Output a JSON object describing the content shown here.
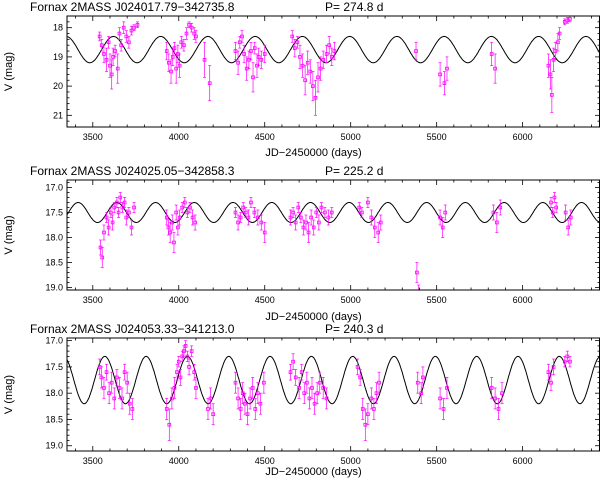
{
  "chart_data": [
    {
      "type": "scatter",
      "title": "Fornax 2MASS J024017.79−342735.8",
      "period_label": "P= 274.8 d",
      "xlabel": "JD−2450000 (days)",
      "ylabel": "V (mag)",
      "xlim": [
        3350,
        6450
      ],
      "ylim": [
        21.4,
        17.6
      ],
      "xticks": [
        3500,
        4000,
        4500,
        5000,
        5500,
        6000
      ],
      "yticks": [
        18,
        19,
        20,
        21
      ],
      "model": {
        "period": 274.8,
        "mean": 18.75,
        "amplitude": 0.45,
        "phase_max_jd": 3620
      },
      "points": [
        [
          3540,
          18.3,
          0.15
        ],
        [
          3552,
          18.6,
          0.2
        ],
        [
          3565,
          18.9,
          0.3
        ],
        [
          3580,
          19.1,
          0.4
        ],
        [
          3592,
          18.5,
          0.2
        ],
        [
          3600,
          19.3,
          0.4
        ],
        [
          3610,
          19.6,
          0.5
        ],
        [
          3618,
          19.0,
          0.3
        ],
        [
          3630,
          18.8,
          0.2
        ],
        [
          3645,
          19.4,
          0.5
        ],
        [
          3655,
          18.2,
          0.2
        ],
        [
          3665,
          18.6,
          0.2
        ],
        [
          3680,
          18.0,
          0.2
        ],
        [
          3695,
          18.3,
          0.2
        ],
        [
          3710,
          18.5,
          0.2
        ],
        [
          3725,
          18.1,
          0.15
        ],
        [
          3740,
          18.0,
          0.1
        ],
        [
          3760,
          17.9,
          0.1
        ],
        [
          3930,
          18.8,
          0.3
        ],
        [
          3942,
          19.2,
          0.3
        ],
        [
          3955,
          19.5,
          0.4
        ],
        [
          3965,
          19.0,
          0.3
        ],
        [
          3975,
          18.7,
          0.2
        ],
        [
          3985,
          19.4,
          0.5
        ],
        [
          3995,
          18.9,
          0.3
        ],
        [
          4005,
          19.3,
          0.4
        ],
        [
          4015,
          18.5,
          0.2
        ],
        [
          4030,
          18.6,
          0.2
        ],
        [
          4045,
          18.2,
          0.2
        ],
        [
          4060,
          17.9,
          0.1
        ],
        [
          4075,
          18.0,
          0.15
        ],
        [
          4090,
          18.2,
          0.2
        ],
        [
          4100,
          18.3,
          0.2
        ],
        [
          4150,
          19.1,
          0.6
        ],
        [
          4180,
          19.9,
          0.6
        ],
        [
          4330,
          18.8,
          0.3
        ],
        [
          4345,
          19.2,
          0.4
        ],
        [
          4355,
          18.5,
          0.2
        ],
        [
          4368,
          18.3,
          0.2
        ],
        [
          4380,
          18.9,
          0.3
        ],
        [
          4395,
          19.4,
          0.4
        ],
        [
          4408,
          19.1,
          0.3
        ],
        [
          4420,
          18.8,
          0.3
        ],
        [
          4432,
          19.7,
          0.5
        ],
        [
          4442,
          18.7,
          0.2
        ],
        [
          4455,
          19.3,
          0.4
        ],
        [
          4465,
          19.0,
          0.3
        ],
        [
          4480,
          19.1,
          0.3
        ],
        [
          4500,
          18.9,
          0.3
        ],
        [
          4660,
          18.3,
          0.2
        ],
        [
          4675,
          18.7,
          0.3
        ],
        [
          4690,
          18.5,
          0.2
        ],
        [
          4705,
          19.0,
          0.4
        ],
        [
          4720,
          19.3,
          0.4
        ],
        [
          4735,
          19.8,
          0.5
        ],
        [
          4750,
          19.2,
          0.4
        ],
        [
          4765,
          19.5,
          0.4
        ],
        [
          4780,
          20.0,
          0.5
        ],
        [
          4795,
          20.4,
          0.6
        ],
        [
          4810,
          19.7,
          0.5
        ],
        [
          4825,
          19.4,
          0.4
        ],
        [
          4840,
          19.1,
          0.3
        ],
        [
          4860,
          18.9,
          0.3
        ],
        [
          4875,
          18.6,
          0.3
        ],
        [
          4890,
          19.0,
          0.3
        ],
        [
          4905,
          18.8,
          0.3
        ],
        [
          5380,
          18.8,
          0.3
        ],
        [
          5520,
          19.6,
          0.4
        ],
        [
          5545,
          19.9,
          0.4
        ],
        [
          5560,
          19.4,
          0.4
        ],
        [
          5820,
          18.9,
          0.4
        ],
        [
          5840,
          19.4,
          0.5
        ],
        [
          6150,
          19.3,
          0.4
        ],
        [
          6162,
          19.6,
          0.5
        ],
        [
          6170,
          20.3,
          0.6
        ],
        [
          6180,
          19.1,
          0.4
        ],
        [
          6190,
          18.8,
          0.3
        ],
        [
          6205,
          18.5,
          0.3
        ],
        [
          6215,
          18.2,
          0.2
        ],
        [
          6245,
          17.8,
          0.1
        ],
        [
          6260,
          17.75,
          0.1
        ],
        [
          6275,
          17.7,
          0.1
        ]
      ]
    },
    {
      "type": "scatter",
      "title": "Fornax 2MASS J024025.05−342858.3",
      "period_label": "P= 225.2 d",
      "xlabel": "JD−2450000 (days)",
      "ylabel": "V (mag)",
      "xlim": [
        3350,
        6450
      ],
      "ylim": [
        19.05,
        16.85
      ],
      "xticks": [
        3500,
        4000,
        4500,
        5000,
        5500,
        6000
      ],
      "yticks": [
        17.0,
        17.5,
        18.0,
        18.5,
        19.0
      ],
      "model": {
        "period": 225.2,
        "mean": 17.5,
        "amplitude": 0.2,
        "phase_max_jd": 3640
      },
      "points": [
        [
          3545,
          18.2,
          0.15
        ],
        [
          3555,
          18.4,
          0.2
        ],
        [
          3565,
          17.9,
          0.15
        ],
        [
          3580,
          17.6,
          0.1
        ],
        [
          3592,
          17.8,
          0.15
        ],
        [
          3605,
          17.5,
          0.1
        ],
        [
          3615,
          17.7,
          0.15
        ],
        [
          3625,
          17.4,
          0.1
        ],
        [
          3640,
          17.3,
          0.1
        ],
        [
          3650,
          17.5,
          0.1
        ],
        [
          3660,
          17.2,
          0.1
        ],
        [
          3672,
          17.4,
          0.1
        ],
        [
          3685,
          17.3,
          0.1
        ],
        [
          3695,
          17.6,
          0.15
        ],
        [
          3710,
          17.5,
          0.1
        ],
        [
          3725,
          17.8,
          0.15
        ],
        [
          3740,
          17.4,
          0.1
        ],
        [
          3930,
          17.6,
          0.15
        ],
        [
          3940,
          17.8,
          0.15
        ],
        [
          3950,
          17.9,
          0.2
        ],
        [
          3962,
          17.7,
          0.15
        ],
        [
          3972,
          18.1,
          0.2
        ],
        [
          3985,
          17.5,
          0.15
        ],
        [
          3995,
          17.8,
          0.15
        ],
        [
          4005,
          17.6,
          0.15
        ],
        [
          4020,
          17.4,
          0.1
        ],
        [
          4035,
          17.3,
          0.1
        ],
        [
          4050,
          17.5,
          0.1
        ],
        [
          4065,
          17.4,
          0.1
        ],
        [
          4080,
          17.6,
          0.15
        ],
        [
          4095,
          17.7,
          0.15
        ],
        [
          4330,
          17.5,
          0.1
        ],
        [
          4345,
          17.7,
          0.15
        ],
        [
          4360,
          17.6,
          0.1
        ],
        [
          4375,
          17.4,
          0.1
        ],
        [
          4390,
          17.5,
          0.1
        ],
        [
          4405,
          17.6,
          0.15
        ],
        [
          4420,
          17.3,
          0.1
        ],
        [
          4440,
          17.5,
          0.1
        ],
        [
          4460,
          17.6,
          0.15
        ],
        [
          4480,
          17.7,
          0.15
        ],
        [
          4500,
          17.9,
          0.2
        ],
        [
          4650,
          17.6,
          0.15
        ],
        [
          4665,
          17.5,
          0.1
        ],
        [
          4680,
          17.7,
          0.15
        ],
        [
          4695,
          17.4,
          0.1
        ],
        [
          4710,
          17.6,
          0.1
        ],
        [
          4725,
          17.8,
          0.15
        ],
        [
          4740,
          17.7,
          0.15
        ],
        [
          4755,
          17.9,
          0.2
        ],
        [
          4770,
          17.6,
          0.15
        ],
        [
          4785,
          17.8,
          0.15
        ],
        [
          4800,
          17.5,
          0.1
        ],
        [
          4815,
          17.7,
          0.15
        ],
        [
          4830,
          17.4,
          0.1
        ],
        [
          4850,
          17.5,
          0.1
        ],
        [
          4870,
          17.6,
          0.15
        ],
        [
          4890,
          17.5,
          0.1
        ],
        [
          5050,
          17.4,
          0.1
        ],
        [
          5065,
          17.5,
          0.1
        ],
        [
          5100,
          17.3,
          0.1
        ],
        [
          5120,
          17.6,
          0.15
        ],
        [
          5140,
          17.8,
          0.2
        ],
        [
          5160,
          17.9,
          0.2
        ],
        [
          5175,
          17.7,
          0.15
        ],
        [
          5385,
          18.7,
          0.2
        ],
        [
          5395,
          19.1,
          0.15
        ],
        [
          5520,
          17.6,
          0.15
        ],
        [
          5535,
          17.8,
          0.2
        ],
        [
          5550,
          17.5,
          0.15
        ],
        [
          5830,
          17.5,
          0.15
        ],
        [
          5850,
          17.7,
          0.2
        ],
        [
          5870,
          17.4,
          0.15
        ],
        [
          6165,
          17.3,
          0.1
        ],
        [
          6175,
          17.5,
          0.1
        ],
        [
          6185,
          17.2,
          0.1
        ],
        [
          6195,
          17.4,
          0.1
        ],
        [
          6250,
          17.5,
          0.15
        ],
        [
          6265,
          17.8,
          0.15
        ],
        [
          6280,
          17.6,
          0.15
        ]
      ]
    },
    {
      "type": "scatter",
      "title": "Fornax 2MASS J024053.33−341213.0",
      "period_label": "P= 240.3 d",
      "xlabel": "JD−2450000 (days)",
      "ylabel": "V (mag)",
      "xlim": [
        3350,
        6450
      ],
      "ylim": [
        19.1,
        16.95
      ],
      "xticks": [
        3500,
        4000,
        4500,
        5000,
        5500,
        6000
      ],
      "yticks": [
        17.0,
        17.5,
        18.0,
        18.5,
        19.0
      ],
      "model": {
        "period": 240.3,
        "mean": 17.75,
        "amplitude": 0.45,
        "phase_max_jd": 3570
      },
      "points": [
        [
          3540,
          17.5,
          0.15
        ],
        [
          3550,
          17.7,
          0.2
        ],
        [
          3565,
          17.9,
          0.2
        ],
        [
          3580,
          17.6,
          0.15
        ],
        [
          3595,
          18.0,
          0.2
        ],
        [
          3610,
          17.8,
          0.2
        ],
        [
          3625,
          18.1,
          0.2
        ],
        [
          3640,
          17.7,
          0.15
        ],
        [
          3655,
          17.9,
          0.2
        ],
        [
          3670,
          18.1,
          0.2
        ],
        [
          3685,
          17.6,
          0.15
        ],
        [
          3700,
          17.8,
          0.2
        ],
        [
          3715,
          18.2,
          0.2
        ],
        [
          3730,
          18.3,
          0.2
        ],
        [
          3930,
          18.3,
          0.2
        ],
        [
          3945,
          18.6,
          0.3
        ],
        [
          3960,
          18.1,
          0.2
        ],
        [
          3975,
          17.9,
          0.2
        ],
        [
          3990,
          17.6,
          0.15
        ],
        [
          4000,
          17.4,
          0.1
        ],
        [
          4010,
          17.7,
          0.15
        ],
        [
          4020,
          17.3,
          0.1
        ],
        [
          4030,
          17.2,
          0.1
        ],
        [
          4040,
          17.1,
          0.1
        ],
        [
          4050,
          17.3,
          0.1
        ],
        [
          4060,
          17.5,
          0.15
        ],
        [
          4075,
          17.2,
          0.1
        ],
        [
          4090,
          17.6,
          0.15
        ],
        [
          4100,
          17.9,
          0.2
        ],
        [
          4170,
          18.3,
          0.2
        ],
        [
          4185,
          18.1,
          0.2
        ],
        [
          4200,
          18.4,
          0.2
        ],
        [
          4330,
          17.8,
          0.2
        ],
        [
          4345,
          18.1,
          0.2
        ],
        [
          4360,
          18.3,
          0.2
        ],
        [
          4372,
          18.0,
          0.2
        ],
        [
          4385,
          18.2,
          0.2
        ],
        [
          4400,
          18.4,
          0.2
        ],
        [
          4415,
          18.1,
          0.2
        ],
        [
          4430,
          17.9,
          0.2
        ],
        [
          4445,
          18.3,
          0.2
        ],
        [
          4460,
          18.0,
          0.2
        ],
        [
          4475,
          18.2,
          0.2
        ],
        [
          4495,
          17.8,
          0.2
        ],
        [
          4650,
          17.6,
          0.15
        ],
        [
          4665,
          17.4,
          0.15
        ],
        [
          4680,
          17.7,
          0.15
        ],
        [
          4700,
          17.9,
          0.2
        ],
        [
          4715,
          17.6,
          0.15
        ],
        [
          4730,
          18.0,
          0.2
        ],
        [
          4745,
          17.8,
          0.2
        ],
        [
          4760,
          18.1,
          0.2
        ],
        [
          4775,
          17.9,
          0.2
        ],
        [
          4790,
          18.2,
          0.2
        ],
        [
          4805,
          18.0,
          0.2
        ],
        [
          4820,
          17.8,
          0.2
        ],
        [
          4840,
          17.9,
          0.2
        ],
        [
          4860,
          18.1,
          0.2
        ],
        [
          5040,
          17.5,
          0.15
        ],
        [
          5055,
          17.7,
          0.15
        ],
        [
          5070,
          18.3,
          0.2
        ],
        [
          5085,
          18.6,
          0.3
        ],
        [
          5100,
          18.4,
          0.2
        ],
        [
          5120,
          18.1,
          0.2
        ],
        [
          5135,
          18.3,
          0.2
        ],
        [
          5150,
          18.0,
          0.2
        ],
        [
          5165,
          17.8,
          0.2
        ],
        [
          5390,
          17.8,
          0.2
        ],
        [
          5410,
          18.0,
          0.2
        ],
        [
          5420,
          17.7,
          0.2
        ],
        [
          5520,
          18.1,
          0.2
        ],
        [
          5540,
          18.3,
          0.2
        ],
        [
          5560,
          17.9,
          0.2
        ],
        [
          5820,
          17.9,
          0.2
        ],
        [
          5840,
          18.1,
          0.2
        ],
        [
          5860,
          18.3,
          0.2
        ],
        [
          5880,
          18.0,
          0.2
        ],
        [
          6150,
          17.6,
          0.15
        ],
        [
          6165,
          17.8,
          0.15
        ],
        [
          6180,
          17.5,
          0.15
        ],
        [
          6245,
          17.4,
          0.1
        ],
        [
          6260,
          17.3,
          0.1
        ],
        [
          6275,
          17.4,
          0.1
        ]
      ]
    }
  ]
}
